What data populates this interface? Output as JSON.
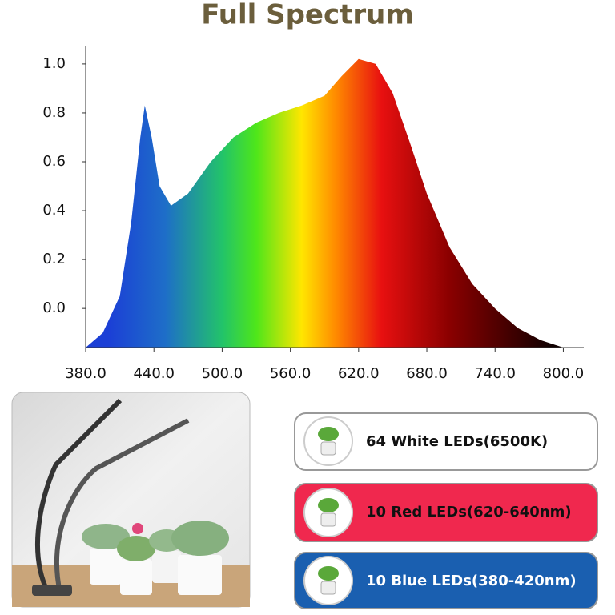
{
  "chart_data": {
    "type": "area",
    "title": "Full Spectrum",
    "x": [
      380,
      395,
      410,
      420,
      428,
      432,
      438,
      445,
      455,
      470,
      490,
      510,
      530,
      550,
      570,
      590,
      605,
      620,
      635,
      650,
      665,
      680,
      700,
      720,
      740,
      760,
      780,
      800
    ],
    "values": [
      -0.16,
      -0.1,
      0.05,
      0.35,
      0.7,
      0.83,
      0.7,
      0.5,
      0.42,
      0.47,
      0.6,
      0.7,
      0.76,
      0.8,
      0.83,
      0.87,
      0.95,
      1.02,
      1.0,
      0.88,
      0.68,
      0.47,
      0.25,
      0.1,
      0.0,
      -0.08,
      -0.13,
      -0.16
    ],
    "gradient": [
      {
        "x": 400,
        "color": "#1b3fd6"
      },
      {
        "x": 450,
        "color": "#1e6ec8"
      },
      {
        "x": 500,
        "color": "#22c36a"
      },
      {
        "x": 530,
        "color": "#4ee61a"
      },
      {
        "x": 570,
        "color": "#ffe600"
      },
      {
        "x": 600,
        "color": "#ff8a00"
      },
      {
        "x": 640,
        "color": "#e81010"
      },
      {
        "x": 700,
        "color": "#8a0000"
      },
      {
        "x": 790,
        "color": "#100000"
      }
    ],
    "xlim": [
      380,
      818
    ],
    "ylim": [
      -0.16,
      1.075
    ],
    "xticks": [
      {
        "value": 380,
        "label": "380.0"
      },
      {
        "value": 440,
        "label": "440.0"
      },
      {
        "value": 500,
        "label": "500.0"
      },
      {
        "value": 560,
        "label": "560.0"
      },
      {
        "value": 620,
        "label": "620.0"
      },
      {
        "value": 680,
        "label": "680.0"
      },
      {
        "value": 740,
        "label": "740.0"
      },
      {
        "value": 800,
        "label": "800.0"
      }
    ],
    "yticks": [
      {
        "value": 0,
        "label": "0.0"
      },
      {
        "value": 0.2,
        "label": "0.2"
      },
      {
        "value": 0.4,
        "label": "0.4"
      },
      {
        "value": 0.6,
        "label": "0.6"
      },
      {
        "value": 0.8,
        "label": "0.8"
      },
      {
        "value": 1,
        "label": "1.0"
      }
    ]
  },
  "badges": [
    {
      "text": "64 White LEDs(6500K)"
    },
    {
      "text": "10 Red LEDs(620-640nm)"
    },
    {
      "text": "10 Blue LEDs(380-420nm)"
    }
  ]
}
